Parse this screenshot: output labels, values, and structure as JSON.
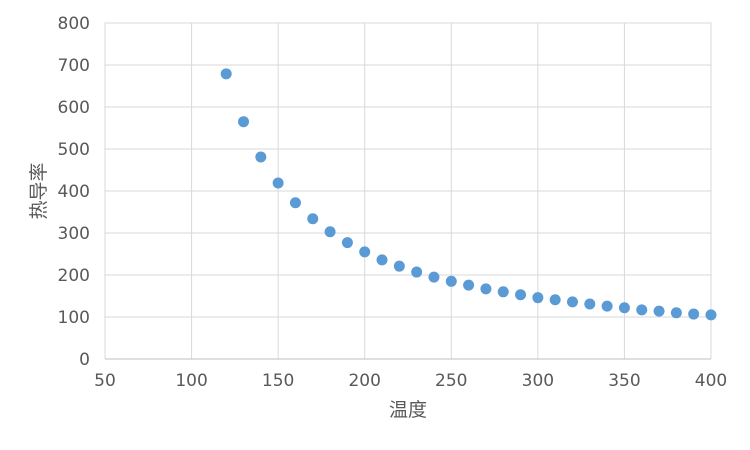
{
  "chart_data": {
    "type": "scatter",
    "title": "",
    "xlabel": "温度",
    "ylabel": "热导率",
    "xlim": [
      50,
      400
    ],
    "ylim": [
      0,
      800
    ],
    "xticks": [
      50,
      100,
      150,
      200,
      250,
      300,
      350,
      400
    ],
    "yticks": [
      0,
      100,
      200,
      300,
      400,
      500,
      600,
      700,
      800
    ],
    "grid": true,
    "marker_color": "#5b9bd5",
    "series": [
      {
        "x": [
          120,
          130,
          140,
          150,
          160,
          170,
          180,
          190,
          200,
          210,
          220,
          230,
          240,
          250,
          260,
          270,
          280,
          290,
          300,
          310,
          320,
          330,
          340,
          350,
          360,
          370,
          380,
          390,
          400
        ],
        "y": [
          679,
          565,
          481,
          419,
          372,
          334,
          303,
          277,
          255,
          236,
          221,
          207,
          195,
          185,
          176,
          167,
          160,
          153,
          146,
          141,
          136,
          131,
          126,
          122,
          117,
          114,
          110,
          107,
          105
        ]
      }
    ]
  }
}
